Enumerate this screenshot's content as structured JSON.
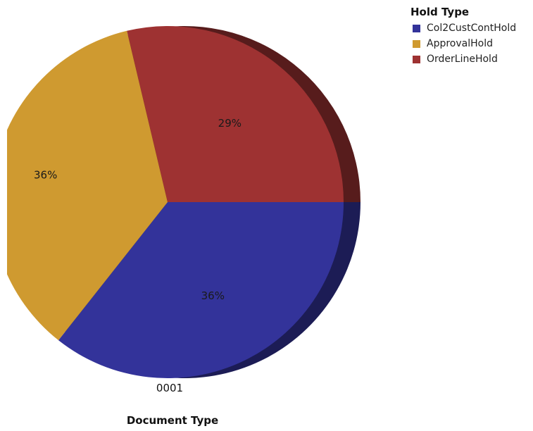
{
  "chart_data": {
    "type": "pie",
    "title": "",
    "xlabel": "Document Type",
    "categories": [
      "0001"
    ],
    "legend_title": "Hold Type",
    "legend_position": "top-right",
    "series": [
      {
        "name": "Col2CustContHold",
        "value": 36,
        "label": "36%",
        "color": "#33339a"
      },
      {
        "name": "ApprovalHold",
        "value": 36,
        "label": "36%",
        "color": "#cf9a30"
      },
      {
        "name": "OrderLineHold",
        "value": 29,
        "label": "29%",
        "color": "#9e3232"
      }
    ]
  }
}
